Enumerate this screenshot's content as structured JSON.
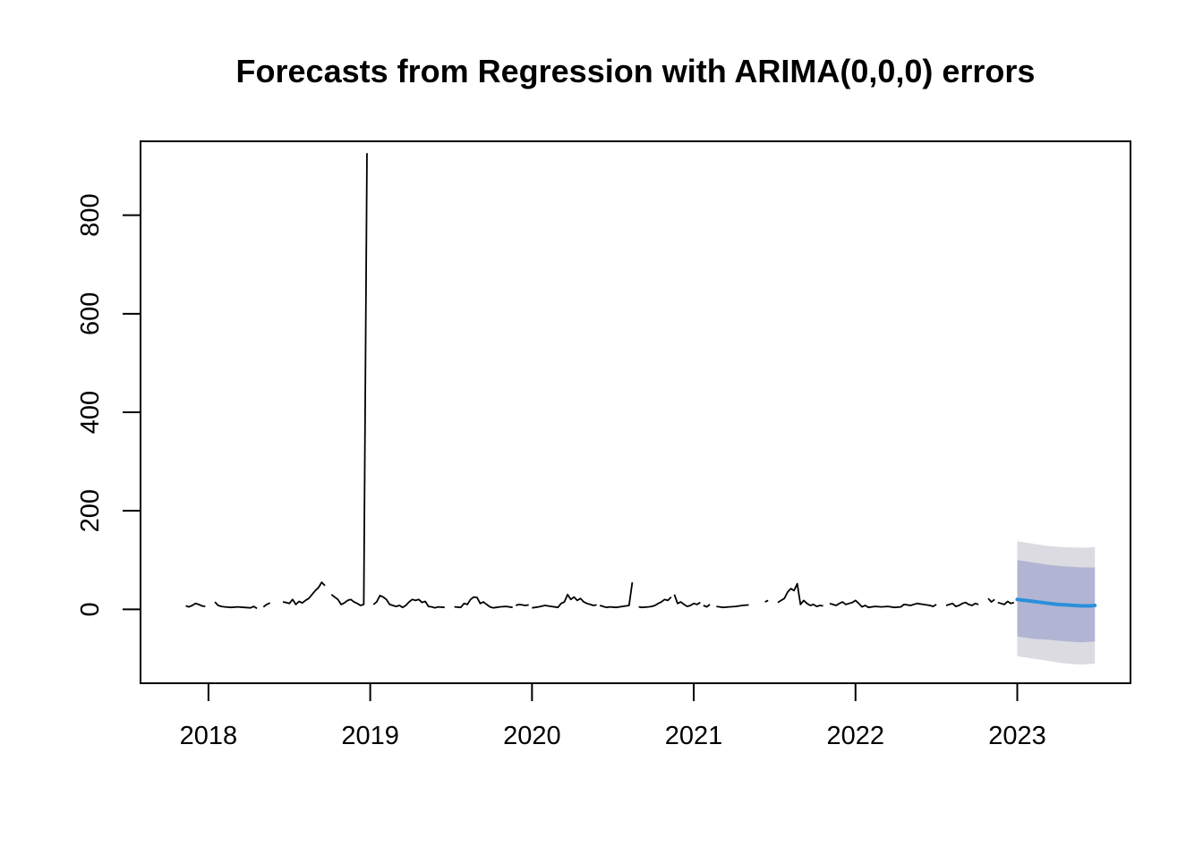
{
  "chart_data": {
    "type": "line",
    "title": "Forecasts from Regression with ARIMA(0,0,0) errors",
    "xlabel": "",
    "ylabel": "",
    "xlim": [
      2017.58,
      2023.7
    ],
    "ylim": [
      -150,
      950
    ],
    "x_ticks": [
      2018,
      2019,
      2020,
      2021,
      2022,
      2023
    ],
    "x_tick_labels": [
      "2018",
      "2019",
      "2020",
      "2021",
      "2022",
      "2023"
    ],
    "y_ticks": [
      0,
      200,
      400,
      600,
      800
    ],
    "y_tick_labels": [
      "0",
      "200",
      "400",
      "600",
      "800"
    ],
    "grid": false,
    "legend": "none",
    "colors": {
      "history": "#000000",
      "forecast": "#2b8fdc",
      "pi80": "#b1b5d3",
      "pi95": "#dbdbe1"
    },
    "series": [
      {
        "role": "history",
        "segments": [
          {
            "x": [
              2017.86,
              2017.88,
              2017.9,
              2017.92,
              2017.94,
              2017.96,
              2017.98
            ],
            "y": [
              7,
              5,
              8,
              12,
              10,
              7,
              6
            ]
          },
          {
            "x": [
              2018.04,
              2018.06,
              2018.08,
              2018.1,
              2018.14,
              2018.18,
              2018.22,
              2018.26,
              2018.28,
              2018.3
            ],
            "y": [
              15,
              8,
              6,
              5,
              4,
              5,
              4,
              3,
              6,
              2
            ]
          },
          {
            "x": [
              2018.34,
              2018.36,
              2018.38
            ],
            "y": [
              5,
              10,
              13
            ]
          },
          {
            "x": [
              2018.46,
              2018.48,
              2018.5,
              2018.52,
              2018.54,
              2018.56,
              2018.58,
              2018.6,
              2018.62,
              2018.64,
              2018.66,
              2018.68,
              2018.7,
              2018.72
            ],
            "y": [
              15,
              14,
              12,
              20,
              10,
              16,
              13,
              18,
              22,
              30,
              38,
              44,
              55,
              48
            ]
          },
          {
            "x": [
              2018.76,
              2018.78,
              2018.8,
              2018.82,
              2018.84,
              2018.86,
              2018.88,
              2018.9,
              2018.92,
              2018.94,
              2018.96,
              2018.98
            ],
            "y": [
              30,
              25,
              20,
              10,
              13,
              18,
              20,
              15,
              12,
              8,
              10,
              926
            ]
          },
          {
            "x": [
              2019.02,
              2019.04,
              2019.06,
              2019.08,
              2019.1,
              2019.12,
              2019.14,
              2019.16,
              2019.18,
              2019.2,
              2019.22,
              2019.24,
              2019.26,
              2019.28,
              2019.3,
              2019.32,
              2019.34,
              2019.36,
              2019.38,
              2019.4,
              2019.42,
              2019.46
            ],
            "y": [
              10,
              15,
              28,
              25,
              20,
              10,
              8,
              6,
              8,
              4,
              8,
              15,
              20,
              18,
              20,
              14,
              16,
              6,
              5,
              3,
              5,
              4
            ]
          },
          {
            "x": [
              2019.52,
              2019.56,
              2019.58,
              2019.6,
              2019.62,
              2019.64,
              2019.66,
              2019.68,
              2019.7,
              2019.72,
              2019.74,
              2019.76,
              2019.78,
              2019.8,
              2019.84,
              2019.88
            ],
            "y": [
              5,
              4,
              12,
              10,
              20,
              25,
              24,
              12,
              15,
              10,
              5,
              3,
              4,
              5,
              6,
              4
            ]
          },
          {
            "x": [
              2019.9,
              2019.92,
              2019.96,
              2019.98
            ],
            "y": [
              8,
              10,
              8,
              9
            ]
          },
          {
            "x": [
              2020.0,
              2020.02,
              2020.04,
              2020.08,
              2020.12,
              2020.16,
              2020.18,
              2020.2,
              2020.22,
              2020.24,
              2020.26,
              2020.28,
              2020.3,
              2020.32,
              2020.34,
              2020.36,
              2020.38,
              2020.4
            ],
            "y": [
              3,
              4,
              5,
              8,
              6,
              4,
              12,
              15,
              30,
              20,
              25,
              18,
              22,
              15,
              12,
              10,
              8,
              9
            ]
          },
          {
            "x": [
              2020.42,
              2020.44,
              2020.46,
              2020.48,
              2020.52,
              2020.56,
              2020.6,
              2020.62
            ],
            "y": [
              8,
              6,
              4,
              5,
              4,
              6,
              8,
              55
            ]
          },
          {
            "x": [
              2020.66,
              2020.68,
              2020.72,
              2020.74,
              2020.76,
              2020.78,
              2020.8,
              2020.82,
              2020.84,
              2020.86
            ],
            "y": [
              5,
              4,
              5,
              6,
              8,
              12,
              15,
              20,
              18,
              25
            ]
          },
          {
            "x": [
              2020.88,
              2020.9,
              2020.92,
              2020.94,
              2020.96,
              2020.98,
              2021.0,
              2021.02,
              2021.04
            ],
            "y": [
              30,
              12,
              15,
              10,
              6,
              8,
              12,
              10,
              14
            ]
          },
          {
            "x": [
              2021.06,
              2021.08,
              2021.1
            ],
            "y": [
              8,
              5,
              10
            ]
          },
          {
            "x": [
              2021.14,
              2021.16,
              2021.18,
              2021.22,
              2021.26,
              2021.3,
              2021.34
            ],
            "y": [
              6,
              5,
              4,
              5,
              6,
              8,
              9
            ]
          },
          {
            "x": [
              2021.44,
              2021.46
            ],
            "y": [
              15,
              18
            ]
          },
          {
            "x": [
              2021.52,
              2021.54,
              2021.56,
              2021.58,
              2021.6,
              2021.62,
              2021.64,
              2021.66,
              2021.68,
              2021.7,
              2021.72,
              2021.74,
              2021.76,
              2021.78,
              2021.8
            ],
            "y": [
              14,
              18,
              22,
              35,
              42,
              38,
              52,
              10,
              18,
              12,
              8,
              10,
              6,
              8,
              7
            ]
          },
          {
            "x": [
              2021.84,
              2021.86,
              2021.88,
              2021.9,
              2021.92,
              2021.94,
              2021.96,
              2021.98,
              2022.0,
              2022.02,
              2022.04,
              2022.06,
              2022.08,
              2022.12,
              2022.16,
              2022.2,
              2022.24,
              2022.28,
              2022.3,
              2022.34,
              2022.38,
              2022.42,
              2022.46,
              2022.48,
              2022.5
            ],
            "y": [
              12,
              10,
              8,
              12,
              15,
              10,
              12,
              14,
              18,
              12,
              5,
              8,
              4,
              6,
              5,
              6,
              4,
              5,
              10,
              8,
              12,
              10,
              8,
              6,
              10
            ]
          },
          {
            "x": [
              2022.56,
              2022.58,
              2022.6,
              2022.62,
              2022.64,
              2022.66,
              2022.68,
              2022.7,
              2022.72,
              2022.74,
              2022.76
            ],
            "y": [
              8,
              10,
              12,
              6,
              8,
              12,
              14,
              10,
              8,
              12,
              10
            ]
          },
          {
            "x": [
              2022.82,
              2022.84,
              2022.86
            ],
            "y": [
              22,
              15,
              20
            ]
          },
          {
            "x": [
              2022.88,
              2022.9,
              2022.92,
              2022.94,
              2022.96,
              2022.98
            ],
            "y": [
              14,
              12,
              10,
              16,
              12,
              14
            ]
          }
        ]
      },
      {
        "role": "forecast",
        "x": [
          2023.0,
          2023.05,
          2023.1,
          2023.15,
          2023.2,
          2023.25,
          2023.3,
          2023.35,
          2023.4,
          2023.45,
          2023.48
        ],
        "y": [
          20,
          18,
          16,
          14,
          12,
          10,
          9,
          8,
          7,
          7,
          8
        ]
      }
    ],
    "intervals": [
      {
        "level": 95,
        "x": [
          2023.0,
          2023.1,
          2023.2,
          2023.3,
          2023.4,
          2023.48
        ],
        "lower": [
          -95,
          -100,
          -105,
          -110,
          -112,
          -110
        ],
        "upper": [
          138,
          133,
          128,
          126,
          125,
          126
        ]
      },
      {
        "level": 80,
        "x": [
          2023.0,
          2023.1,
          2023.2,
          2023.3,
          2023.4,
          2023.48
        ],
        "lower": [
          -55,
          -60,
          -62,
          -65,
          -67,
          -65
        ],
        "upper": [
          100,
          95,
          90,
          87,
          85,
          85
        ]
      }
    ]
  }
}
